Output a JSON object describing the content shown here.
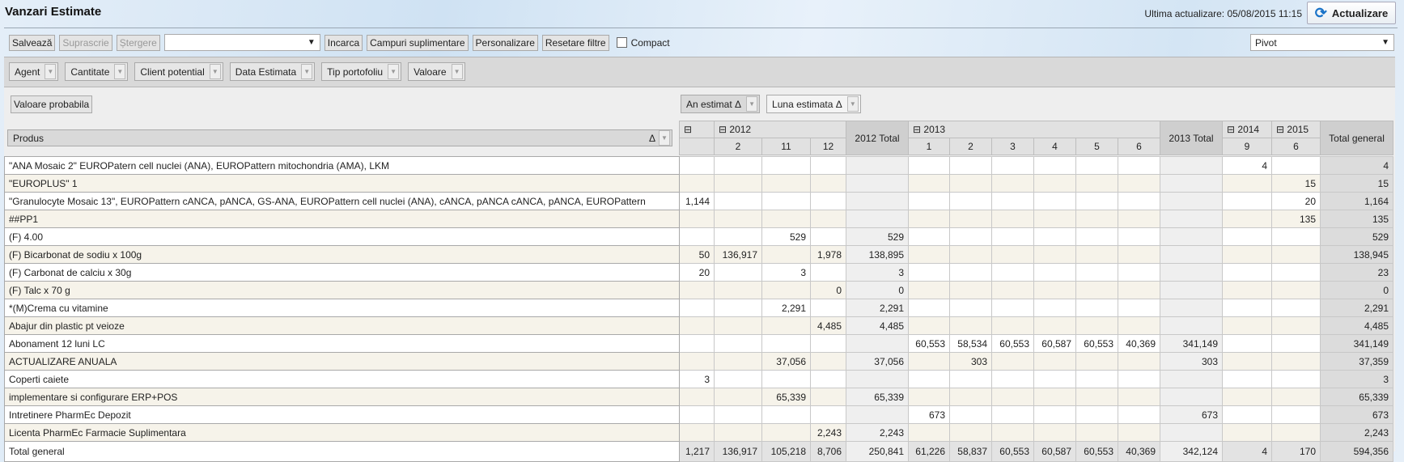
{
  "header": {
    "title": "Vanzari Estimate",
    "last_update": "Ultima actualizare: 05/08/2015 11:15",
    "refresh_label": "Actualizare",
    "refresh_icon": "refresh-icon"
  },
  "toolbar": {
    "save": "Salvează",
    "overwrite": "Suprascrie",
    "delete": "Ștergere",
    "layout_value": "",
    "load": "Incarca",
    "extra_fields": "Campuri suplimentare",
    "customize": "Personalizare",
    "reset_filters": "Resetare filtre",
    "compact": "Compact",
    "view_select": "Pivot"
  },
  "filters": [
    "Agent",
    "Cantitate",
    "Client potential",
    "Data Estimata",
    "Tip portofoliu",
    "Valoare"
  ],
  "data_field": "Valoare probabila",
  "column_fields": [
    "An estimat Δ",
    "Luna estimata Δ"
  ],
  "row_field": {
    "label": "Produs",
    "sort": "Δ"
  },
  "col_header": {
    "row1": [
      {
        "t": "⊟",
        "span": 1
      },
      {
        "t": "⊟ 2012",
        "span": 3
      },
      {
        "t": "2012 Total",
        "total": true
      },
      {
        "t": "⊟ 2013",
        "span": 6
      },
      {
        "t": "2013 Total",
        "total": true
      },
      {
        "t": "⊟ 2014",
        "span": 1
      },
      {
        "t": "⊟ 2015",
        "span": 1
      },
      {
        "t": "Total general",
        "total": true
      }
    ],
    "row2": [
      "",
      "2",
      "11",
      "12",
      "1",
      "2",
      "3",
      "4",
      "5",
      "6",
      "9",
      "6"
    ]
  },
  "rows": [
    {
      "produs": "\"ANA Mosaic 2\" EUROPatern cell nuclei (ANA), EUROPattern mitochondria (AMA), LKM",
      "v": [
        "",
        "",
        "",
        "",
        "",
        "",
        "",
        "",
        "",
        "",
        "",
        "",
        "4",
        "",
        "4"
      ]
    },
    {
      "produs": "\"EUROPLUS\" 1",
      "v": [
        "",
        "",
        "",
        "",
        "",
        "",
        "",
        "",
        "",
        "",
        "",
        "",
        "",
        "15",
        "15"
      ]
    },
    {
      "produs": "\"Granulocyte Mosaic 13\", EUROPattern cANCA, pANCA, GS-ANA, EUROPattern cell nuclei (ANA), cANCA, pANCA cANCA, pANCA, EUROPattern",
      "v": [
        "1,144",
        "",
        "",
        "",
        "",
        "",
        "",
        "",
        "",
        "",
        "",
        "",
        "",
        "20",
        "1,164"
      ]
    },
    {
      "produs": "##PP1",
      "v": [
        "",
        "",
        "",
        "",
        "",
        "",
        "",
        "",
        "",
        "",
        "",
        "",
        "",
        "135",
        "135"
      ]
    },
    {
      "produs": "(F) 4.00",
      "v": [
        "",
        "",
        "529",
        "",
        "529",
        "",
        "",
        "",
        "",
        "",
        "",
        "",
        "",
        "",
        "529"
      ]
    },
    {
      "produs": "(F) Bicarbonat de sodiu x 100g",
      "v": [
        "50",
        "136,917",
        "",
        "1,978",
        "138,895",
        "",
        "",
        "",
        "",
        "",
        "",
        "",
        "",
        "",
        "138,945"
      ]
    },
    {
      "produs": "(F) Carbonat de calciu x 30g",
      "v": [
        "20",
        "",
        "3",
        "",
        "3",
        "",
        "",
        "",
        "",
        "",
        "",
        "",
        "",
        "",
        "23"
      ]
    },
    {
      "produs": "(F) Talc x 70 g",
      "v": [
        "",
        "",
        "",
        "0",
        "0",
        "",
        "",
        "",
        "",
        "",
        "",
        "",
        "",
        "",
        "0"
      ]
    },
    {
      "produs": "*(M)Crema cu vitamine",
      "v": [
        "",
        "",
        "2,291",
        "",
        "2,291",
        "",
        "",
        "",
        "",
        "",
        "",
        "",
        "",
        "",
        "2,291"
      ]
    },
    {
      "produs": "Abajur din plastic pt veioze",
      "v": [
        "",
        "",
        "",
        "4,485",
        "4,485",
        "",
        "",
        "",
        "",
        "",
        "",
        "",
        "",
        "",
        "4,485"
      ]
    },
    {
      "produs": "Abonament 12 luni LC",
      "v": [
        "",
        "",
        "",
        "",
        "",
        "60,553",
        "58,534",
        "60,553",
        "60,587",
        "60,553",
        "40,369",
        "341,149",
        "",
        "",
        "341,149"
      ]
    },
    {
      "produs": "ACTUALIZARE ANUALA",
      "v": [
        "",
        "",
        "37,056",
        "",
        "37,056",
        "",
        "303",
        "",
        "",
        "",
        "",
        "303",
        "",
        "",
        "37,359"
      ]
    },
    {
      "produs": "Coperti caiete",
      "v": [
        "3",
        "",
        "",
        "",
        "",
        "",
        "",
        "",
        "",
        "",
        "",
        "",
        "",
        "",
        "3"
      ]
    },
    {
      "produs": "implementare si configurare ERP+POS",
      "v": [
        "",
        "",
        "65,339",
        "",
        "65,339",
        "",
        "",
        "",
        "",
        "",
        "",
        "",
        "",
        "",
        "65,339"
      ]
    },
    {
      "produs": "Intretinere PharmEc Depozit",
      "v": [
        "",
        "",
        "",
        "",
        "",
        "673",
        "",
        "",
        "",
        "",
        "",
        "673",
        "",
        "",
        "673"
      ]
    },
    {
      "produs": "Licenta PharmEc Farmacie Suplimentara",
      "v": [
        "",
        "",
        "",
        "2,243",
        "2,243",
        "",
        "",
        "",
        "",
        "",
        "",
        "",
        "",
        "",
        "2,243"
      ]
    }
  ],
  "total_row": {
    "produs": "Total general",
    "v": [
      "1,217",
      "136,917",
      "105,218",
      "8,706",
      "250,841",
      "61,226",
      "58,837",
      "60,553",
      "60,587",
      "60,553",
      "40,369",
      "342,124",
      "4",
      "170",
      "594,356"
    ]
  }
}
